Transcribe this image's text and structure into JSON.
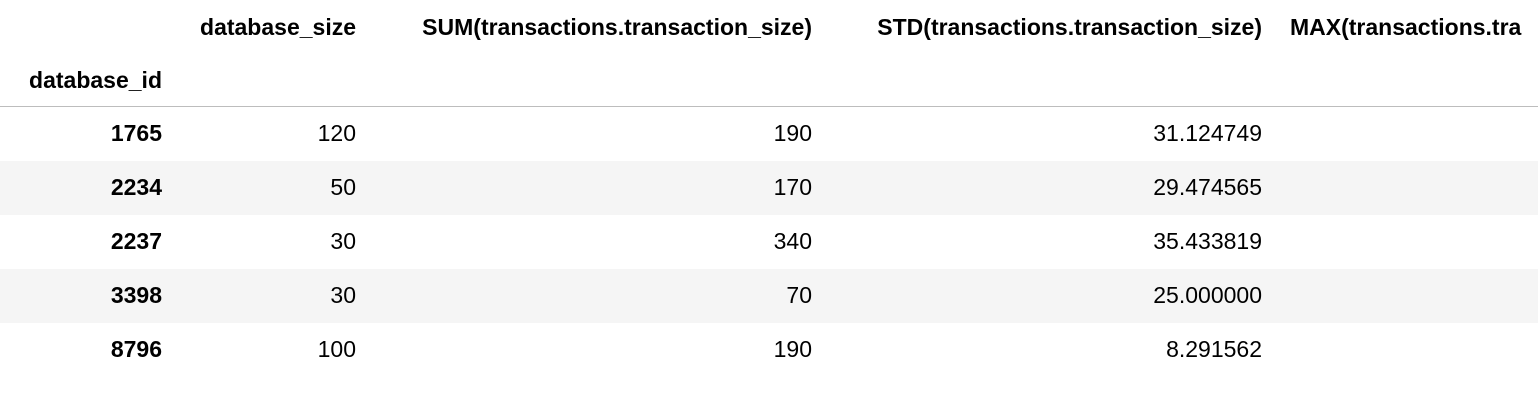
{
  "table": {
    "index_name": "database_id",
    "columns": [
      "database_size",
      "SUM(transactions.transaction_size)",
      "STD(transactions.transaction_size)",
      "MAX(transactions.tra"
    ],
    "rows": [
      {
        "id": "1765",
        "values": [
          "120",
          "190",
          "31.124749",
          ""
        ]
      },
      {
        "id": "2234",
        "values": [
          "50",
          "170",
          "29.474565",
          ""
        ]
      },
      {
        "id": "2237",
        "values": [
          "30",
          "340",
          "35.433819",
          ""
        ]
      },
      {
        "id": "3398",
        "values": [
          "30",
          "70",
          "25.000000",
          ""
        ]
      },
      {
        "id": "8796",
        "values": [
          "100",
          "190",
          "8.291562",
          ""
        ]
      }
    ]
  }
}
